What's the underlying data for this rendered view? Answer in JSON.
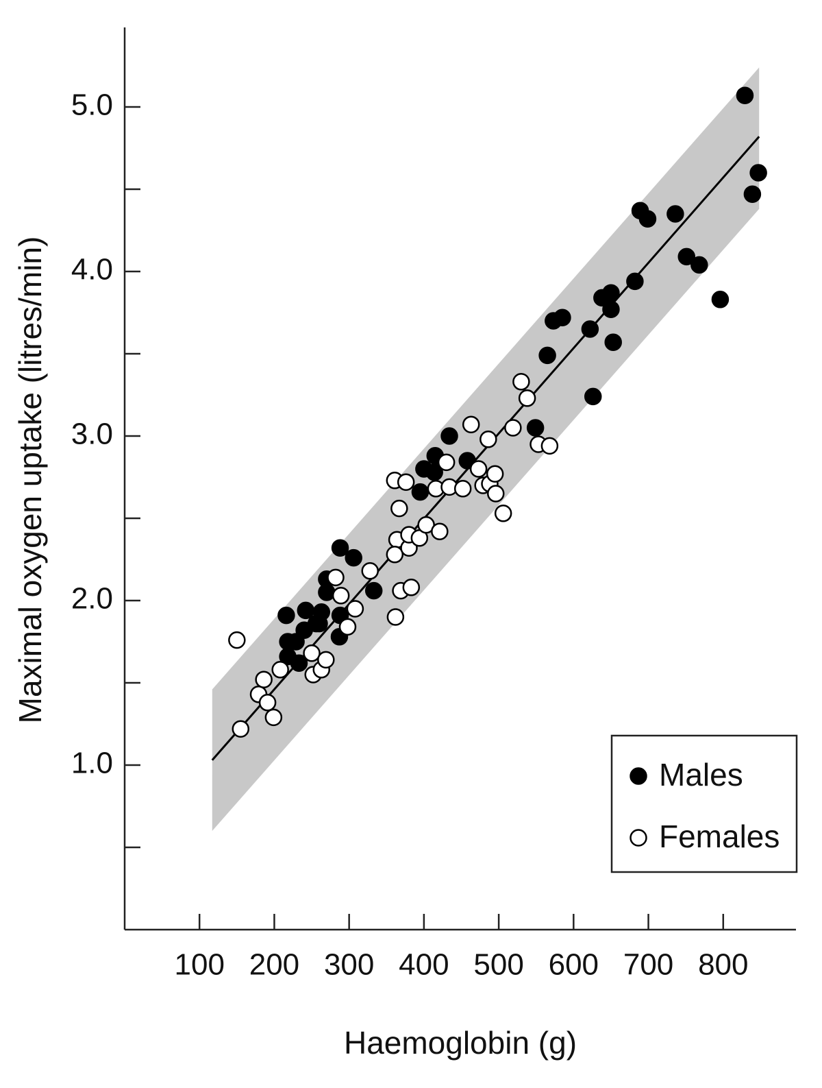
{
  "chart_data": {
    "type": "scatter",
    "x_label": "Haemoglobin (g)",
    "y_label": "Maximal oxygen uptake (litres/min)",
    "xlim": [
      0,
      900
    ],
    "ylim": [
      0,
      5.5
    ],
    "xticks": [
      100,
      200,
      300,
      400,
      500,
      600,
      700,
      800
    ],
    "yticks": [
      {
        "value": 1,
        "label": "1.0"
      },
      {
        "value": 2,
        "label": "2.0"
      },
      {
        "value": 3,
        "label": "3.0"
      },
      {
        "value": 4,
        "label": "4.0"
      },
      {
        "value": 5,
        "label": "5.0"
      }
    ],
    "yticks_minor": [
      0.5,
      1.5,
      2.5,
      3.5,
      4.5
    ],
    "legend": "lower right",
    "fit_line": {
      "color": "#000000",
      "x": [
        117,
        848
      ],
      "y": [
        1.03,
        4.82
      ]
    },
    "band": {
      "color": "#c8c8c8",
      "x": [
        117,
        848
      ],
      "lower": [
        0.6,
        4.38
      ],
      "upper": [
        1.46,
        5.24
      ]
    },
    "series": [
      {
        "name": "Males",
        "color": "#000000",
        "x": [
          829,
          847,
          839,
          796,
          768,
          751,
          736,
          699,
          689,
          682,
          650,
          638,
          650,
          653,
          622,
          626,
          585,
          573,
          565,
          549,
          458,
          434,
          415,
          414,
          400,
          395,
          306,
          288,
          333,
          288,
          270,
          270,
          287,
          263,
          260,
          242,
          240,
          216,
          218,
          229,
          218,
          233,
          256
        ],
        "values": [
          5.07,
          4.6,
          4.47,
          3.83,
          4.04,
          4.09,
          4.35,
          4.32,
          4.37,
          3.94,
          3.87,
          3.84,
          3.77,
          3.57,
          3.65,
          3.24,
          3.72,
          3.7,
          3.49,
          3.05,
          2.85,
          3.0,
          2.88,
          2.78,
          2.8,
          2.66,
          2.26,
          2.32,
          2.06,
          1.91,
          2.05,
          2.13,
          1.78,
          1.93,
          1.86,
          1.94,
          1.82,
          1.91,
          1.75,
          1.75,
          1.66,
          1.62,
          1.86
        ]
      },
      {
        "name": "Females",
        "color": "#ffffff",
        "x": [
          150,
          155,
          179,
          186,
          191,
          199,
          208,
          250,
          252,
          263,
          269,
          282,
          289,
          298,
          308,
          328,
          361,
          376,
          367,
          364,
          361,
          362,
          369,
          383,
          380,
          380,
          394,
          403,
          421,
          416,
          430,
          434,
          452,
          463,
          473,
          479,
          488,
          486,
          495,
          496,
          506,
          519,
          530,
          538,
          553,
          568
        ],
        "values": [
          1.76,
          1.22,
          1.43,
          1.52,
          1.38,
          1.29,
          1.58,
          1.68,
          1.55,
          1.58,
          1.64,
          2.14,
          2.03,
          1.84,
          1.95,
          2.18,
          2.73,
          2.72,
          2.56,
          2.37,
          2.28,
          1.9,
          2.06,
          2.08,
          2.32,
          2.4,
          2.38,
          2.46,
          2.42,
          2.68,
          2.84,
          2.69,
          2.68,
          3.07,
          2.8,
          2.7,
          2.71,
          2.98,
          2.77,
          2.65,
          2.53,
          3.05,
          3.33,
          3.23,
          2.95,
          2.94
        ]
      }
    ]
  }
}
